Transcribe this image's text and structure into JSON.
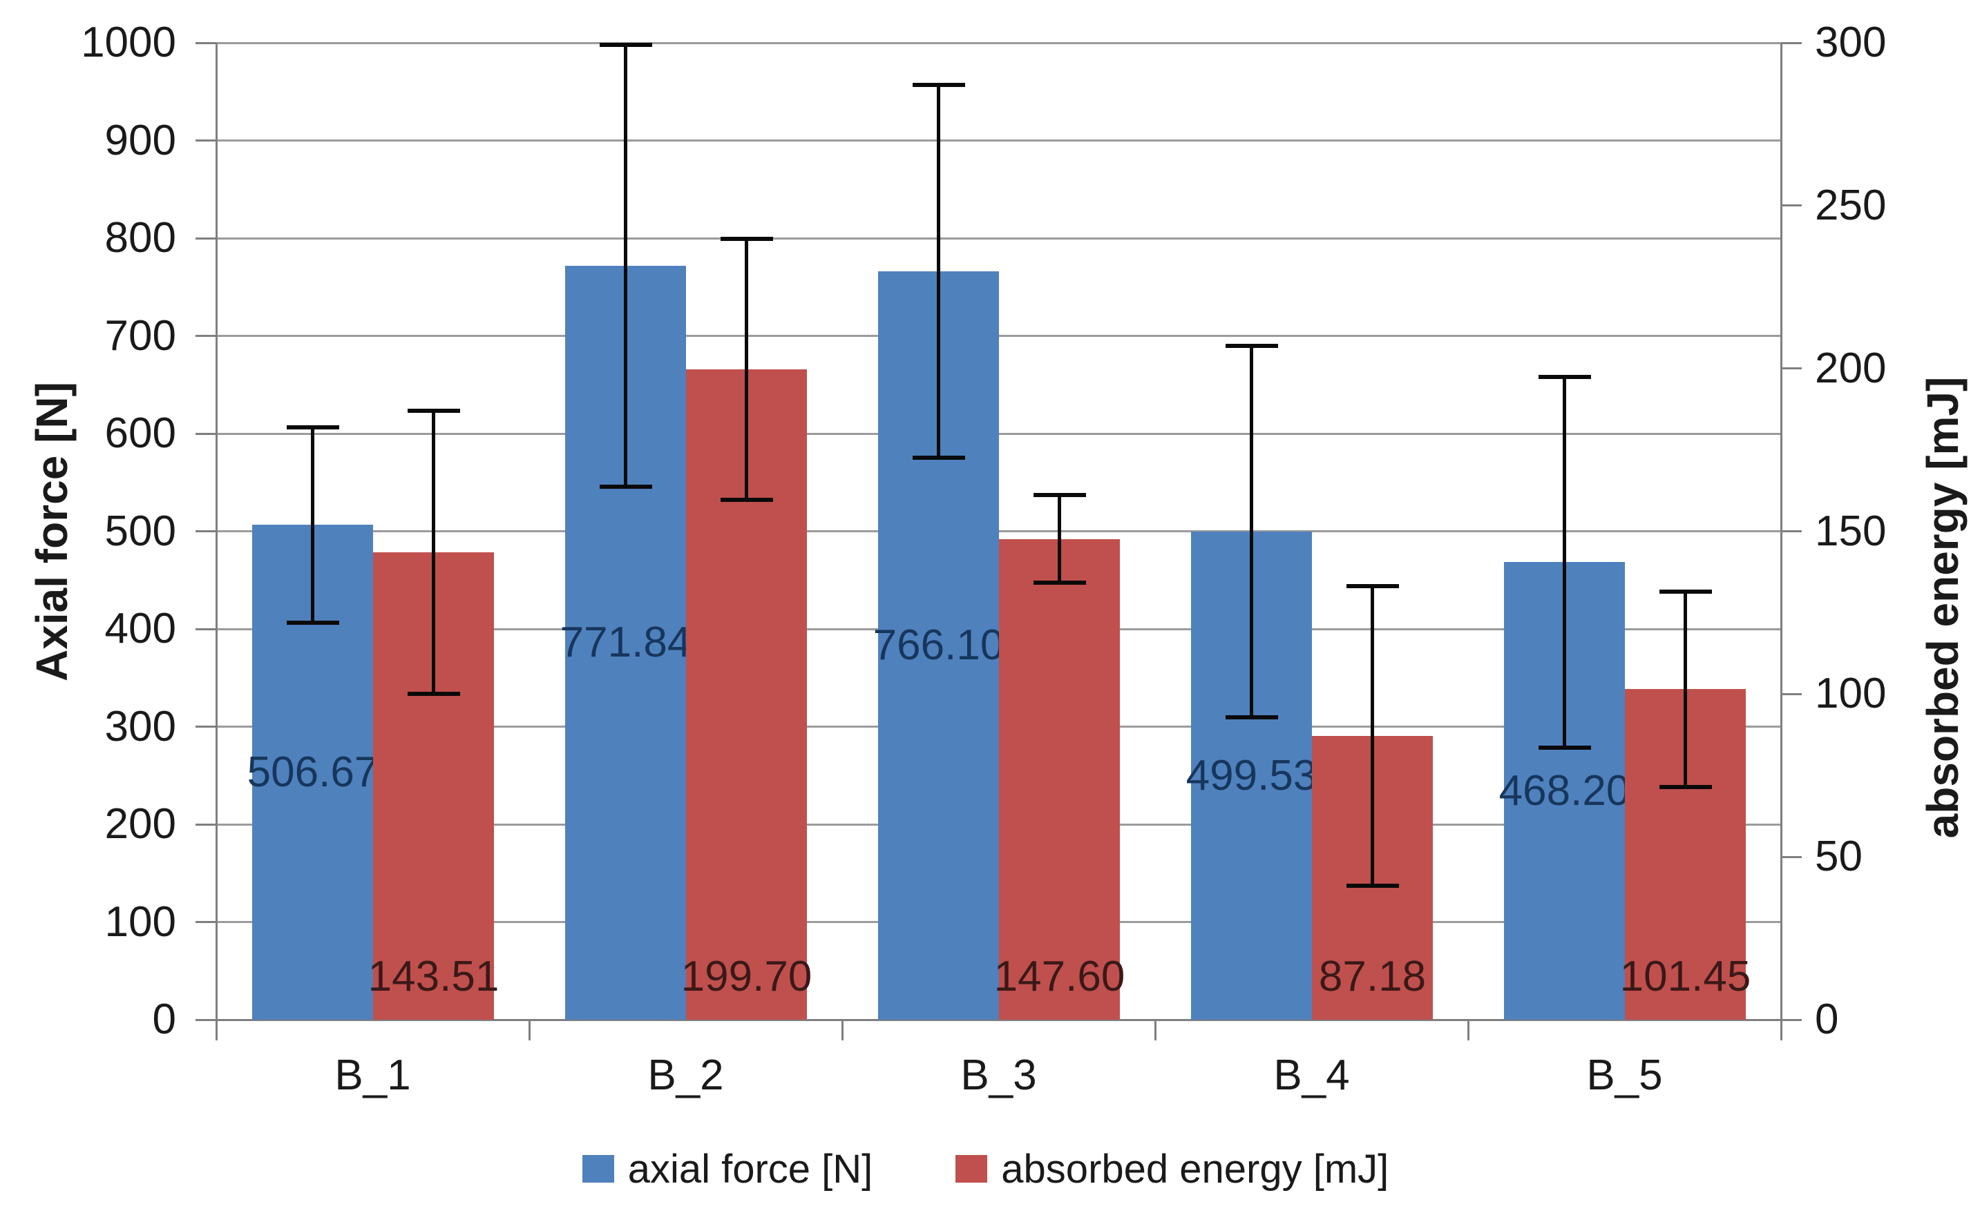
{
  "chart_data": {
    "type": "bar",
    "title": "",
    "categories": [
      "B_1",
      "B_2",
      "B_3",
      "B_4",
      "B_5"
    ],
    "series": [
      {
        "name": "axial force [N]",
        "axis": "left",
        "color": "#4F81BD",
        "label_color": "#17365c",
        "label_position": "center",
        "values": [
          506.67,
          771.84,
          766.1,
          499.53,
          468.2
        ],
        "labels": [
          "506.67",
          "771.84",
          "766.10",
          "499.53",
          "468.20"
        ],
        "error": [
          100,
          226,
          191,
          190,
          190
        ]
      },
      {
        "name": "absorbed energy [mJ]",
        "axis": "right",
        "color": "#C0504D",
        "label_color": "#3a1918",
        "label_position": "inside-base",
        "values": [
          143.51,
          199.7,
          147.6,
          87.18,
          101.45
        ],
        "labels": [
          "143.51",
          "199.70",
          "147.60",
          "87.18",
          "101.45"
        ],
        "error": [
          43.5,
          40,
          13.5,
          46,
          30
        ]
      }
    ],
    "left_axis": {
      "title": "Axial force [N]",
      "min": 0,
      "max": 1000,
      "step": 100
    },
    "right_axis": {
      "title": "absorbed energy [mJ]",
      "min": 0,
      "max": 300,
      "step": 50
    },
    "grid": true,
    "legend_position": "bottom",
    "legend": [
      {
        "label": "axial force [N]",
        "color": "#4F81BD"
      },
      {
        "label": "absorbed energy [mJ]",
        "color": "#C0504D"
      }
    ]
  },
  "styles": {
    "plot_bg": "#ffffff",
    "grid_color": "#9b9b9b",
    "axis_color": "#7f7f7f",
    "error_bar_color": "#0a0a0a",
    "tick_text_color": "#1a1a1a"
  }
}
